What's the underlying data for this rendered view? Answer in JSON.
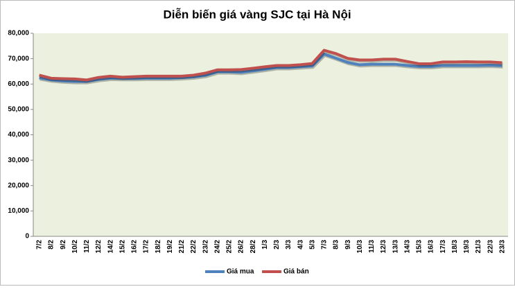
{
  "chart_data": {
    "type": "line",
    "title": "Diễn biến giá vàng SJC tại Hà Nội",
    "categories": [
      "7/2",
      "8/2",
      "9/2",
      "10/2",
      "11/2",
      "12/2",
      "14/2",
      "15/2",
      "16/2",
      "17/2",
      "18/2",
      "19/2",
      "21/2",
      "22/2",
      "23/2",
      "24/2",
      "25/2",
      "26/2",
      "28/2",
      "1/3",
      "2/3",
      "3/3",
      "4/3",
      "5/3",
      "7/3",
      "8/3",
      "9/3",
      "10/3",
      "11/3",
      "12/3",
      "13/3",
      "14/3",
      "15/3",
      "16/3",
      "17/3",
      "18/3",
      "19/3",
      "21/3",
      "22/3",
      "23/3"
    ],
    "series": [
      {
        "name": "Giá mua",
        "color": "#4f81bd",
        "values": [
          62400,
          61600,
          61200,
          61000,
          61000,
          61800,
          62300,
          62200,
          62200,
          62300,
          62300,
          62300,
          62500,
          62800,
          63400,
          64800,
          64800,
          64600,
          65200,
          65800,
          66500,
          66500,
          66800,
          67100,
          71800,
          70200,
          68500,
          67600,
          67800,
          67800,
          67800,
          67300,
          66900,
          66900,
          67300,
          67300,
          67300,
          67300,
          67400,
          67200
        ]
      },
      {
        "name": "Giá bán",
        "color": "#c0504d",
        "values": [
          63500,
          62300,
          62100,
          62000,
          61600,
          62600,
          63100,
          62700,
          62900,
          63100,
          63100,
          63100,
          63100,
          63500,
          64300,
          65600,
          65600,
          65700,
          66200,
          66800,
          67300,
          67300,
          67600,
          68100,
          73300,
          72000,
          70100,
          69500,
          69500,
          69800,
          69800,
          68900,
          68000,
          68000,
          68700,
          68700,
          68800,
          68700,
          68700,
          68400
        ]
      }
    ],
    "ylim": [
      0,
      80000
    ],
    "yticks": [
      0,
      {
        "value": 10000,
        "label": "10,000"
      },
      {
        "value": 20000,
        "label": "20,000"
      },
      {
        "value": 30000,
        "label": "30,000"
      },
      {
        "value": 40000,
        "label": "40,000"
      },
      {
        "value": 50000,
        "label": "50,000"
      },
      {
        "value": 60000,
        "label": "60,000"
      },
      {
        "value": 70000,
        "label": "70,000"
      },
      {
        "value": 80000,
        "label": "80,000"
      }
    ],
    "legend": "bottom",
    "plot_background": "#ebf1de"
  }
}
